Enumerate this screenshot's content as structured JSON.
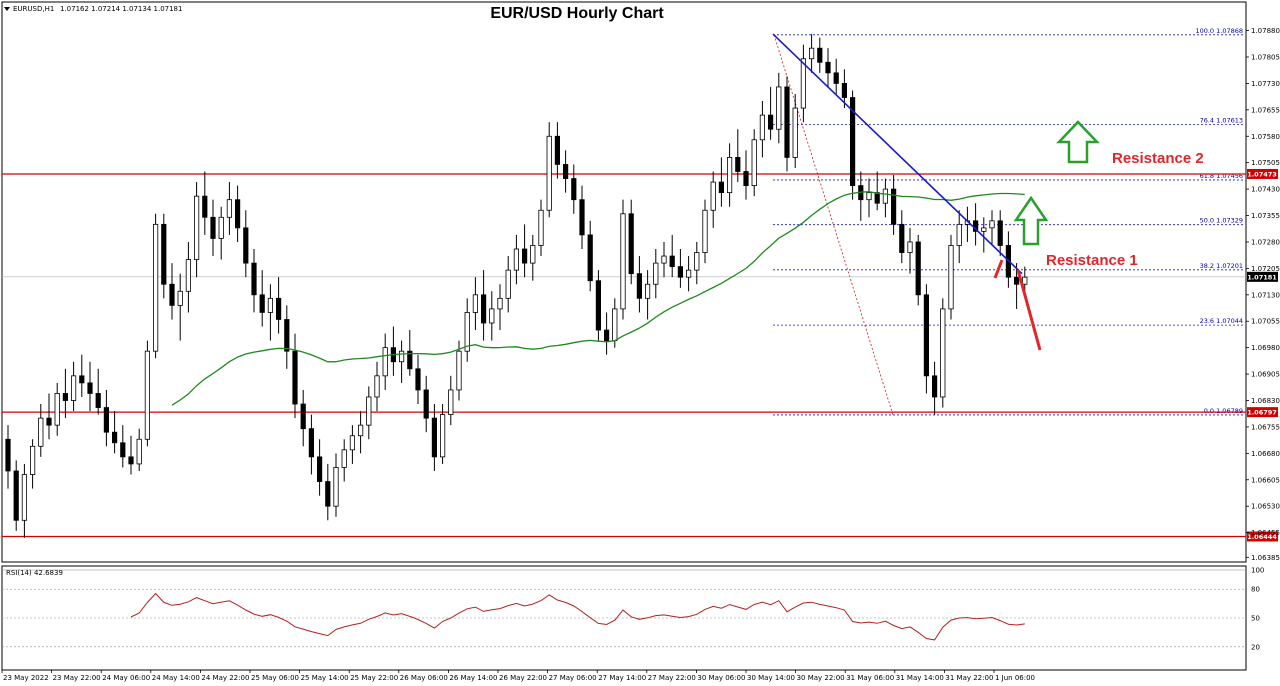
{
  "chart_data": {
    "type": "candlestick",
    "title": "EUR/USD Hourly Chart",
    "header": {
      "symbol": "EURUSD,H1",
      "ohlc": "1.07162 1.07214 1.07134 1.07181"
    },
    "price_axis": {
      "ylim": [
        1.0638,
        1.0791
      ],
      "ticks": [
        "1.07880",
        "1.07805",
        "1.07730",
        "1.07655",
        "1.07580",
        "1.07505",
        "1.07430",
        "1.07355",
        "1.07280",
        "1.07205",
        "1.07130",
        "1.07055",
        "1.06980",
        "1.06905",
        "1.06830",
        "1.06755",
        "1.06680",
        "1.06605",
        "1.06530",
        "1.06455",
        "1.06385"
      ]
    },
    "time_axis": {
      "labels": [
        "23 May 2022",
        "23 May 22:00",
        "24 May 06:00",
        "24 May 14:00",
        "24 May 22:00",
        "25 May 06:00",
        "25 May 14:00",
        "25 May 22:00",
        "26 May 06:00",
        "26 May 14:00",
        "26 May 22:00",
        "27 May 06:00",
        "27 May 14:00",
        "27 May 22:00",
        "30 May 06:00",
        "30 May 14:00",
        "30 May 22:00",
        "31 May 06:00",
        "31 May 14:00",
        "31 May 22:00",
        "1 Jun 06:00"
      ]
    },
    "candles": [
      [
        1.0672,
        1.0676,
        1.0658,
        1.0663
      ],
      [
        1.0663,
        1.0666,
        1.0646,
        1.0649
      ],
      [
        1.0649,
        1.0665,
        1.0644,
        1.0662
      ],
      [
        1.0662,
        1.0672,
        1.0658,
        1.067
      ],
      [
        1.067,
        1.0682,
        1.0667,
        1.0678
      ],
      [
        1.0678,
        1.0685,
        1.0672,
        1.0676
      ],
      [
        1.0676,
        1.0688,
        1.0673,
        1.0685
      ],
      [
        1.0685,
        1.0692,
        1.0678,
        1.0683
      ],
      [
        1.0683,
        1.0694,
        1.068,
        1.069
      ],
      [
        1.069,
        1.0696,
        1.0684,
        1.0688
      ],
      [
        1.0688,
        1.0694,
        1.068,
        1.0685
      ],
      [
        1.0685,
        1.0692,
        1.0679,
        1.0681
      ],
      [
        1.0681,
        1.0686,
        1.067,
        1.0674
      ],
      [
        1.0674,
        1.068,
        1.0668,
        1.0671
      ],
      [
        1.0671,
        1.0676,
        1.0664,
        1.0667
      ],
      [
        1.0667,
        1.0673,
        1.0662,
        1.0665
      ],
      [
        1.0665,
        1.0675,
        1.0663,
        1.0672
      ],
      [
        1.0672,
        1.07,
        1.067,
        1.0697
      ],
      [
        1.0697,
        1.0736,
        1.0695,
        1.0733
      ],
      [
        1.0733,
        1.0736,
        1.0712,
        1.0716
      ],
      [
        1.0716,
        1.0722,
        1.0706,
        1.071
      ],
      [
        1.071,
        1.0719,
        1.07,
        1.0714
      ],
      [
        1.0714,
        1.0728,
        1.0708,
        1.0723
      ],
      [
        1.0723,
        1.0745,
        1.0718,
        1.0741
      ],
      [
        1.0741,
        1.0748,
        1.073,
        1.0735
      ],
      [
        1.0735,
        1.074,
        1.0724,
        1.0729
      ],
      [
        1.0729,
        1.0738,
        1.0723,
        1.0735
      ],
      [
        1.0735,
        1.0745,
        1.073,
        1.074
      ],
      [
        1.074,
        1.0744,
        1.0728,
        1.0732
      ],
      [
        1.0732,
        1.0737,
        1.0718,
        1.0722
      ],
      [
        1.0722,
        1.0726,
        1.0708,
        1.0713
      ],
      [
        1.0713,
        1.072,
        1.0704,
        1.0708
      ],
      [
        1.0708,
        1.0716,
        1.07,
        1.0712
      ],
      [
        1.0712,
        1.0718,
        1.0702,
        1.0706
      ],
      [
        1.0706,
        1.071,
        1.0692,
        1.0697
      ],
      [
        1.0697,
        1.0702,
        1.0678,
        1.0682
      ],
      [
        1.0682,
        1.0686,
        1.067,
        1.0675
      ],
      [
        1.0675,
        1.0679,
        1.0662,
        1.0667
      ],
      [
        1.0667,
        1.0672,
        1.0656,
        1.066
      ],
      [
        1.066,
        1.0665,
        1.0649,
        1.0653
      ],
      [
        1.0653,
        1.0668,
        1.065,
        1.0664
      ],
      [
        1.0664,
        1.0672,
        1.066,
        1.0669
      ],
      [
        1.0669,
        1.0676,
        1.0665,
        1.0673
      ],
      [
        1.0673,
        1.068,
        1.0668,
        1.0676
      ],
      [
        1.0676,
        1.0687,
        1.0672,
        1.0684
      ],
      [
        1.0684,
        1.0694,
        1.068,
        1.069
      ],
      [
        1.069,
        1.0702,
        1.0686,
        1.0698
      ],
      [
        1.0698,
        1.0704,
        1.069,
        1.0694
      ],
      [
        1.0694,
        1.07,
        1.0688,
        1.0697
      ],
      [
        1.0697,
        1.0703,
        1.069,
        1.0692
      ],
      [
        1.0692,
        1.0696,
        1.0682,
        1.0686
      ],
      [
        1.0686,
        1.069,
        1.0674,
        1.0678
      ],
      [
        1.0678,
        1.0682,
        1.0663,
        1.0667
      ],
      [
        1.0667,
        1.0682,
        1.0665,
        1.0679
      ],
      [
        1.0679,
        1.069,
        1.0676,
        1.0686
      ],
      [
        1.0686,
        1.07,
        1.0683,
        1.0697
      ],
      [
        1.0697,
        1.0712,
        1.0694,
        1.0708
      ],
      [
        1.0708,
        1.0718,
        1.0703,
        1.0713
      ],
      [
        1.0713,
        1.072,
        1.07,
        1.0705
      ],
      [
        1.0705,
        1.0714,
        1.07,
        1.0709
      ],
      [
        1.0709,
        1.0716,
        1.0703,
        1.0712
      ],
      [
        1.0712,
        1.0724,
        1.0708,
        1.072
      ],
      [
        1.072,
        1.073,
        1.0716,
        1.0726
      ],
      [
        1.0726,
        1.0733,
        1.0718,
        1.0722
      ],
      [
        1.0722,
        1.073,
        1.0717,
        1.0727
      ],
      [
        1.0727,
        1.074,
        1.0724,
        1.0737
      ],
      [
        1.0737,
        1.0762,
        1.0735,
        1.0758
      ],
      [
        1.0758,
        1.0762,
        1.0746,
        1.075
      ],
      [
        1.075,
        1.0754,
        1.0742,
        1.0746
      ],
      [
        1.0746,
        1.075,
        1.0736,
        1.074
      ],
      [
        1.074,
        1.0744,
        1.0726,
        1.073
      ],
      [
        1.073,
        1.0734,
        1.0714,
        1.0717
      ],
      [
        1.0717,
        1.072,
        1.07,
        1.0703
      ],
      [
        1.0703,
        1.0708,
        1.0696,
        1.07
      ],
      [
        1.07,
        1.0712,
        1.0698,
        1.0709
      ],
      [
        1.0709,
        1.074,
        1.0706,
        1.0736
      ],
      [
        1.0736,
        1.074,
        1.0716,
        1.0719
      ],
      [
        1.0719,
        1.0724,
        1.0708,
        1.0712
      ],
      [
        1.0712,
        1.072,
        1.0706,
        1.0716
      ],
      [
        1.0716,
        1.0726,
        1.0712,
        1.0722
      ],
      [
        1.0722,
        1.0728,
        1.0718,
        1.0724
      ],
      [
        1.0724,
        1.073,
        1.0718,
        1.0721
      ],
      [
        1.0721,
        1.0726,
        1.0715,
        1.0718
      ],
      [
        1.0718,
        1.0724,
        1.0714,
        1.072
      ],
      [
        1.072,
        1.0728,
        1.0716,
        1.0725
      ],
      [
        1.0725,
        1.074,
        1.0722,
        1.0737
      ],
      [
        1.0737,
        1.0748,
        1.0732,
        1.0745
      ],
      [
        1.0745,
        1.0752,
        1.0738,
        1.0742
      ],
      [
        1.0742,
        1.0756,
        1.0738,
        1.0752
      ],
      [
        1.0752,
        1.076,
        1.0745,
        1.0748
      ],
      [
        1.0748,
        1.0754,
        1.074,
        1.0744
      ],
      [
        1.0744,
        1.076,
        1.0741,
        1.0757
      ],
      [
        1.0757,
        1.0768,
        1.0752,
        1.0764
      ],
      [
        1.0764,
        1.0772,
        1.0757,
        1.076
      ],
      [
        1.076,
        1.0776,
        1.0756,
        1.0772
      ],
      [
        1.0772,
        1.0775,
        1.0748,
        1.0752
      ],
      [
        1.0752,
        1.077,
        1.0749,
        1.0766
      ],
      [
        1.0766,
        1.0784,
        1.0762,
        1.078
      ],
      [
        1.078,
        1.0787,
        1.0776,
        1.0783
      ],
      [
        1.0783,
        1.0786,
        1.0776,
        1.0779
      ],
      [
        1.0779,
        1.0783,
        1.0772,
        1.0776
      ],
      [
        1.0776,
        1.078,
        1.077,
        1.0773
      ],
      [
        1.0773,
        1.0777,
        1.0766,
        1.0769
      ],
      [
        1.0769,
        1.0771,
        1.074,
        1.0744
      ],
      [
        1.0744,
        1.0748,
        1.0734,
        1.074
      ],
      [
        1.074,
        1.0746,
        1.0735,
        1.0742
      ],
      [
        1.0742,
        1.0748,
        1.0737,
        1.0739
      ],
      [
        1.0739,
        1.0746,
        1.0735,
        1.0743
      ],
      [
        1.0743,
        1.0747,
        1.073,
        1.0733
      ],
      [
        1.0733,
        1.0737,
        1.0722,
        1.0725
      ],
      [
        1.0725,
        1.0732,
        1.0719,
        1.0728
      ],
      [
        1.0728,
        1.073,
        1.071,
        1.0713
      ],
      [
        1.0713,
        1.0716,
        1.0685,
        1.069
      ],
      [
        1.069,
        1.0694,
        1.0679,
        1.0684
      ],
      [
        1.0684,
        1.0712,
        1.0681,
        1.0709
      ],
      [
        1.0709,
        1.073,
        1.0706,
        1.0727
      ],
      [
        1.0727,
        1.0737,
        1.0722,
        1.0733
      ],
      [
        1.0733,
        1.0738,
        1.0728,
        1.0734
      ],
      [
        1.0734,
        1.0739,
        1.0727,
        1.0731
      ],
      [
        1.0731,
        1.0735,
        1.0725,
        1.0732
      ],
      [
        1.0732,
        1.0737,
        1.0727,
        1.0734
      ],
      [
        1.0734,
        1.0737,
        1.0724,
        1.0727
      ],
      [
        1.0727,
        1.0731,
        1.0715,
        1.0718
      ],
      [
        1.0718,
        1.0722,
        1.0709,
        1.0716
      ],
      [
        1.0716,
        1.0721,
        1.0713,
        1.0718
      ]
    ],
    "series": [
      {
        "name": "",
        "type": "moving-average",
        "color": "#1e8a1e"
      },
      {
        "name": "RSI(14) 42.6839",
        "type": "oscillator",
        "color": "#b22222",
        "ylim": [
          0,
          100
        ],
        "levels": [
          20,
          50,
          80,
          100
        ]
      }
    ],
    "rsi_ticks": [
      "100",
      "80",
      "50",
      "20"
    ],
    "levels": [
      {
        "label": "",
        "price": 1.07473,
        "tag": "1.07473",
        "color": "#d40000"
      },
      {
        "label": "",
        "price": 1.06797,
        "tag": "1.06797",
        "color": "#d40000"
      },
      {
        "label": "",
        "price": 1.06444,
        "tag": "1.06444",
        "color": "#d40000"
      },
      {
        "label": "",
        "price": 1.07181,
        "tag": "1.07181",
        "color": "#000000"
      }
    ],
    "fibonacci": [
      {
        "label": "100.0 1.07868",
        "price": 1.07868
      },
      {
        "label": "76.4 1.07613",
        "price": 1.07613
      },
      {
        "label": "61.8 1.07456",
        "price": 1.07456
      },
      {
        "label": "50.0 1.07329",
        "price": 1.07329
      },
      {
        "label": "38.2 1.07201",
        "price": 1.07201
      },
      {
        "label": "23.6 1.07044",
        "price": 1.07044
      },
      {
        "label": "0.0 1.06789",
        "price": 1.06789
      }
    ],
    "trendline": {
      "color": "#1a1acc",
      "from": {
        "time": "30 May 14:00",
        "price": 1.0787
      },
      "to": {
        "time": "1 Jun 06:00",
        "price": 1.0721
      }
    },
    "annotations": [
      {
        "text": "Resistance 2",
        "color": "#e0262a"
      },
      {
        "text": "Resistance 1",
        "color": "#e0262a"
      }
    ],
    "arrows": {
      "up_color": "#2aa02a",
      "down_color": "#e0262a"
    },
    "grid": false
  }
}
